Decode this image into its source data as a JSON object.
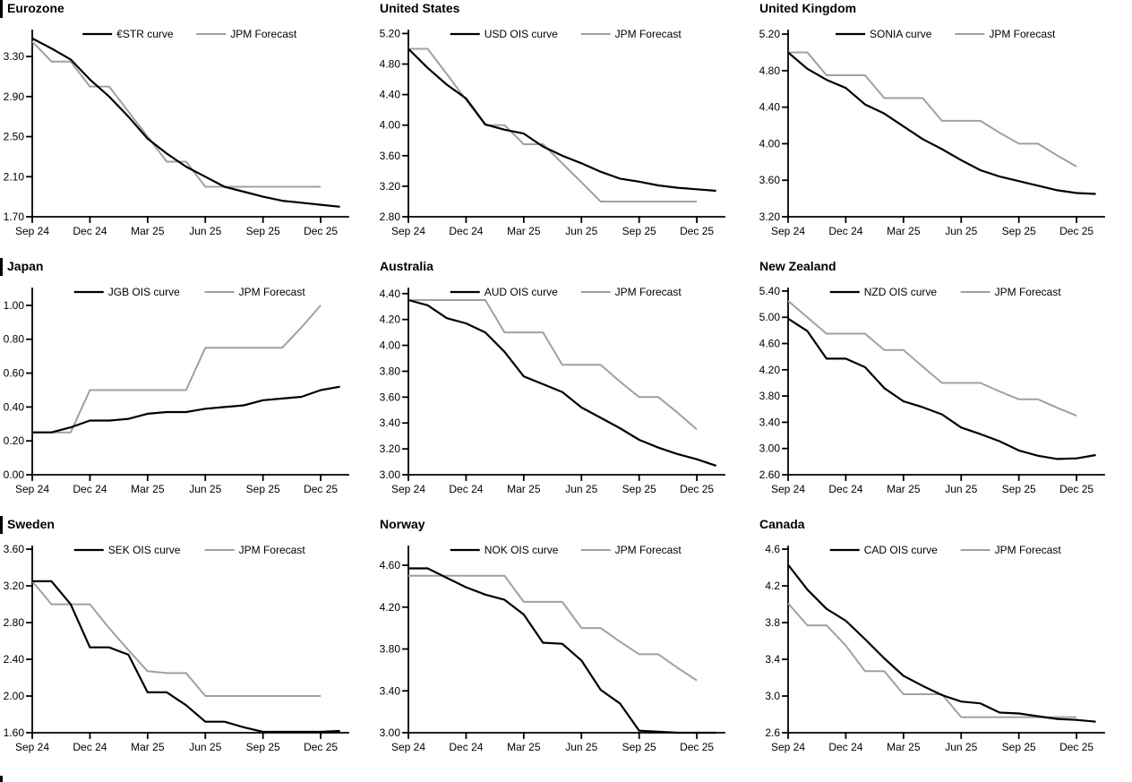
{
  "page": {
    "background": "#ffffff",
    "accent_black": "#000000",
    "accent_gray": "#a0a0a0",
    "forecast_series_label": "JPM Forecast"
  },
  "chart_data": [
    {
      "type": "line",
      "title": "Eurozone",
      "x_labels": [
        "Sep 24",
        "Dec 24",
        "Mar 25",
        "Jun 25",
        "Sep 25",
        "Dec 25"
      ],
      "x_tick_month_indices": [
        0,
        3,
        6,
        9,
        12,
        15
      ],
      "xlim": [
        0,
        16.3
      ],
      "ylim": [
        1.7,
        3.56
      ],
      "y_ticks": [
        "1.70",
        "2.10",
        "2.50",
        "2.90",
        "3.30"
      ],
      "grid": false,
      "legend_position": "top-center",
      "series": [
        {
          "name": "€STR curve",
          "color": "#000000",
          "values": [
            3.48,
            3.38,
            3.27,
            3.07,
            2.9,
            2.7,
            2.48,
            2.33,
            2.2,
            2.1,
            2.0,
            1.95,
            1.9,
            1.86,
            1.84,
            1.82,
            1.8
          ]
        },
        {
          "name": "JPM Forecast",
          "color": "#a0a0a0",
          "values": [
            3.45,
            3.25,
            3.25,
            3.0,
            3.0,
            2.75,
            2.5,
            2.25,
            2.25,
            2.0,
            2.0,
            2.0,
            2.0,
            2.0,
            2.0,
            2.0
          ]
        }
      ]
    },
    {
      "type": "line",
      "title": "United States",
      "x_labels": [
        "Sep 24",
        "Dec 24",
        "Mar 25",
        "Jun 25",
        "Sep 25",
        "Dec 25"
      ],
      "x_tick_month_indices": [
        0,
        3,
        6,
        9,
        12,
        15
      ],
      "xlim": [
        0,
        16.3
      ],
      "ylim": [
        2.8,
        5.24
      ],
      "y_ticks": [
        "2.80",
        "3.20",
        "3.60",
        "4.00",
        "4.40",
        "4.80",
        "5.20"
      ],
      "grid": false,
      "legend_position": "top-center",
      "series": [
        {
          "name": "USD OIS curve",
          "color": "#000000",
          "values": [
            5.0,
            4.75,
            4.53,
            4.35,
            4.01,
            3.94,
            3.89,
            3.72,
            3.6,
            3.5,
            3.39,
            3.3,
            3.26,
            3.21,
            3.18,
            3.16,
            3.14
          ]
        },
        {
          "name": "JPM Forecast",
          "color": "#a0a0a0",
          "values": [
            5.0,
            5.0,
            4.67,
            4.33,
            4.0,
            4.0,
            3.75,
            3.75,
            3.5,
            3.25,
            3.0,
            3.0,
            3.0,
            3.0,
            3.0,
            3.0
          ]
        }
      ]
    },
    {
      "type": "line",
      "title": "United Kingdom",
      "x_labels": [
        "Sep 24",
        "Dec 24",
        "Mar 25",
        "Jun 25",
        "Sep 25",
        "Dec 25"
      ],
      "x_tick_month_indices": [
        0,
        3,
        6,
        9,
        12,
        15
      ],
      "xlim": [
        0,
        16.3
      ],
      "ylim": [
        3.2,
        5.24
      ],
      "y_ticks": [
        "3.20",
        "3.60",
        "4.00",
        "4.40",
        "4.80",
        "5.20"
      ],
      "grid": false,
      "legend_position": "top-center",
      "series": [
        {
          "name": "SONIA curve",
          "color": "#000000",
          "values": [
            5.0,
            4.82,
            4.7,
            4.61,
            4.43,
            4.33,
            4.19,
            4.05,
            3.94,
            3.82,
            3.71,
            3.64,
            3.59,
            3.54,
            3.49,
            3.46,
            3.45
          ]
        },
        {
          "name": "JPM Forecast",
          "color": "#a0a0a0",
          "values": [
            5.0,
            5.0,
            4.75,
            4.75,
            4.75,
            4.5,
            4.5,
            4.5,
            4.25,
            4.25,
            4.25,
            4.12,
            4.0,
            4.0,
            3.87,
            3.75
          ]
        }
      ]
    },
    {
      "type": "line",
      "title": "Japan",
      "x_labels": [
        "Sep 24",
        "Dec 24",
        "Mar 25",
        "Jun 25",
        "Sep 25",
        "Dec 25"
      ],
      "x_tick_month_indices": [
        0,
        3,
        6,
        9,
        12,
        15
      ],
      "xlim": [
        0,
        16.3
      ],
      "ylim": [
        0.0,
        1.1
      ],
      "y_ticks": [
        "0.00",
        "0.20",
        "0.40",
        "0.60",
        "0.80",
        "1.00"
      ],
      "grid": false,
      "legend_position": "top-center",
      "series": [
        {
          "name": "JGB OIS curve",
          "color": "#000000",
          "values": [
            0.25,
            0.25,
            0.28,
            0.32,
            0.32,
            0.33,
            0.36,
            0.37,
            0.37,
            0.39,
            0.4,
            0.41,
            0.44,
            0.45,
            0.46,
            0.5,
            0.52
          ]
        },
        {
          "name": "JPM Forecast",
          "color": "#a0a0a0",
          "values": [
            0.25,
            0.25,
            0.25,
            0.5,
            0.5,
            0.5,
            0.5,
            0.5,
            0.5,
            0.75,
            0.75,
            0.75,
            0.75,
            0.75,
            0.87,
            1.0
          ]
        }
      ]
    },
    {
      "type": "line",
      "title": "Australia",
      "x_labels": [
        "Sep 24",
        "Dec 24",
        "Mar 25",
        "Jun 25",
        "Sep 25",
        "Dec 25"
      ],
      "x_tick_month_indices": [
        0,
        3,
        6,
        9,
        12,
        15
      ],
      "xlim": [
        0,
        16.3
      ],
      "ylim": [
        3.0,
        4.44
      ],
      "y_ticks": [
        "3.00",
        "3.20",
        "3.40",
        "3.60",
        "3.80",
        "4.00",
        "4.20",
        "4.40"
      ],
      "grid": false,
      "legend_position": "top-center",
      "series": [
        {
          "name": "AUD OIS curve",
          "color": "#000000",
          "values": [
            4.35,
            4.31,
            4.21,
            4.17,
            4.1,
            3.95,
            3.76,
            3.7,
            3.64,
            3.52,
            3.44,
            3.36,
            3.27,
            3.21,
            3.16,
            3.12,
            3.07
          ]
        },
        {
          "name": "JPM Forecast",
          "color": "#a0a0a0",
          "values": [
            4.35,
            4.35,
            4.35,
            4.35,
            4.35,
            4.1,
            4.1,
            4.1,
            3.85,
            3.85,
            3.85,
            3.72,
            3.6,
            3.6,
            3.48,
            3.35
          ]
        }
      ]
    },
    {
      "type": "line",
      "title": "New Zealand",
      "x_labels": [
        "Sep 24",
        "Dec 24",
        "Mar 25",
        "Jun 25",
        "Sep 25",
        "Dec 25"
      ],
      "x_tick_month_indices": [
        0,
        3,
        6,
        9,
        12,
        15
      ],
      "xlim": [
        0,
        16.3
      ],
      "ylim": [
        2.6,
        5.44
      ],
      "y_ticks": [
        "2.60",
        "3.00",
        "3.40",
        "3.80",
        "4.20",
        "4.60",
        "5.00",
        "5.40"
      ],
      "grid": false,
      "legend_position": "top-center",
      "series": [
        {
          "name": "NZD OIS curve",
          "color": "#000000",
          "values": [
            4.98,
            4.79,
            4.37,
            4.37,
            4.24,
            3.92,
            3.72,
            3.63,
            3.52,
            3.32,
            3.22,
            3.11,
            2.97,
            2.89,
            2.84,
            2.85,
            2.9
          ]
        },
        {
          "name": "JPM Forecast",
          "color": "#a0a0a0",
          "values": [
            5.25,
            5.0,
            4.75,
            4.75,
            4.75,
            4.5,
            4.5,
            4.25,
            4.0,
            4.0,
            4.0,
            3.87,
            3.75,
            3.75,
            3.62,
            3.5
          ]
        }
      ]
    },
    {
      "type": "line",
      "title": "Sweden",
      "x_labels": [
        "Sep 24",
        "Dec 24",
        "Mar 25",
        "Jun 25",
        "Sep 25",
        "Dec 25"
      ],
      "x_tick_month_indices": [
        0,
        3,
        6,
        9,
        12,
        15
      ],
      "xlim": [
        0,
        16.3
      ],
      "ylim": [
        1.6,
        3.63
      ],
      "y_ticks": [
        "1.60",
        "2.00",
        "2.40",
        "2.80",
        "3.20",
        "3.60"
      ],
      "grid": false,
      "legend_position": "top-center",
      "series": [
        {
          "name": "SEK OIS curve",
          "color": "#000000",
          "values": [
            3.25,
            3.25,
            3.0,
            2.53,
            2.53,
            2.45,
            2.04,
            2.04,
            1.9,
            1.72,
            1.72,
            1.66,
            1.61,
            1.61,
            1.61,
            1.61,
            1.62
          ]
        },
        {
          "name": "JPM Forecast",
          "color": "#a0a0a0",
          "values": [
            3.25,
            3.0,
            3.0,
            3.0,
            2.74,
            2.5,
            2.27,
            2.25,
            2.25,
            2.0,
            2.0,
            2.0,
            2.0,
            2.0,
            2.0,
            2.0
          ]
        }
      ]
    },
    {
      "type": "line",
      "title": "Norway",
      "x_labels": [
        "Sep 24",
        "Dec 24",
        "Mar 25",
        "Jun 25",
        "Sep 25",
        "Dec 25"
      ],
      "x_tick_month_indices": [
        0,
        3,
        6,
        9,
        12,
        15
      ],
      "xlim": [
        0,
        16.3
      ],
      "ylim": [
        3.0,
        4.78
      ],
      "y_ticks": [
        "3.00",
        "3.40",
        "3.80",
        "4.20",
        "4.60"
      ],
      "grid": false,
      "legend_position": "top-center",
      "series": [
        {
          "name": "NOK OIS curve",
          "color": "#000000",
          "values": [
            4.57,
            4.57,
            4.48,
            4.39,
            4.32,
            4.27,
            4.13,
            3.86,
            3.85,
            3.69,
            3.41,
            3.28,
            3.02,
            3.01,
            3.0,
            3.0,
            3.0
          ]
        },
        {
          "name": "JPM Forecast",
          "color": "#a0a0a0",
          "values": [
            4.5,
            4.5,
            4.5,
            4.5,
            4.5,
            4.5,
            4.25,
            4.25,
            4.25,
            4.0,
            4.0,
            3.87,
            3.75,
            3.75,
            3.62,
            3.5
          ]
        }
      ]
    },
    {
      "type": "line",
      "title": "Canada",
      "x_labels": [
        "Sep 24",
        "Dec 24",
        "Mar 25",
        "Jun 25",
        "Sep 25",
        "Dec 25"
      ],
      "x_tick_month_indices": [
        0,
        3,
        6,
        9,
        12,
        15
      ],
      "xlim": [
        0,
        16.3
      ],
      "ylim": [
        2.6,
        4.63
      ],
      "y_ticks": [
        "2.6",
        "3.0",
        "3.4",
        "3.8",
        "4.2",
        "4.6"
      ],
      "grid": false,
      "legend_position": "top-center",
      "series": [
        {
          "name": "CAD OIS curve",
          "color": "#000000",
          "values": [
            4.43,
            4.16,
            3.95,
            3.82,
            3.62,
            3.41,
            3.22,
            3.11,
            3.01,
            2.94,
            2.92,
            2.82,
            2.81,
            2.78,
            2.75,
            2.74,
            2.72
          ]
        },
        {
          "name": "JPM Forecast",
          "color": "#a0a0a0",
          "values": [
            4.01,
            3.77,
            3.77,
            3.55,
            3.27,
            3.27,
            3.02,
            3.02,
            3.02,
            2.77,
            2.77,
            2.77,
            2.77,
            2.77,
            2.77,
            2.77
          ]
        }
      ]
    }
  ]
}
